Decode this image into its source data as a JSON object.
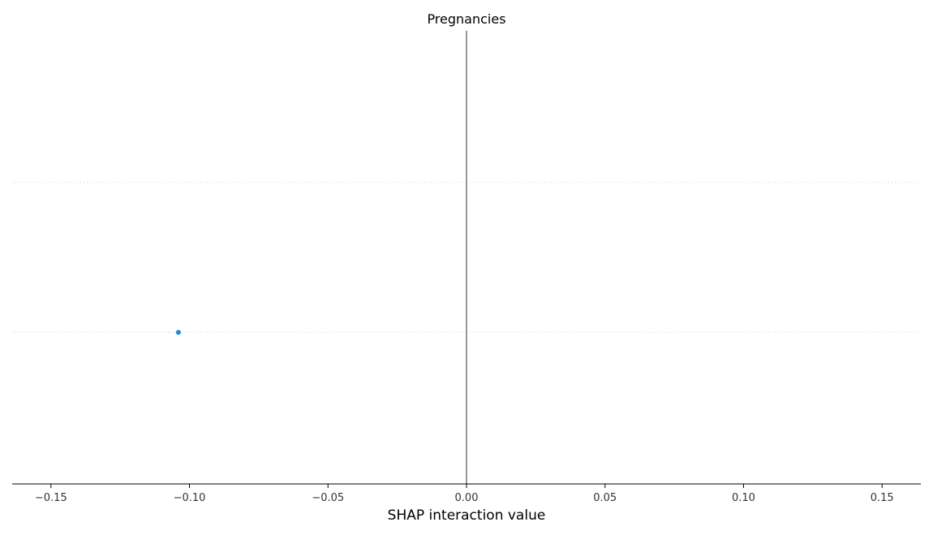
{
  "chart_data": {
    "type": "scatter",
    "title": "Pregnancies",
    "xlabel": "SHAP interaction value",
    "ylabel": "",
    "xlim": [
      -0.164,
      0.164
    ],
    "xticks": [
      -0.15,
      -0.1,
      -0.05,
      0.0,
      0.05,
      0.1,
      0.15
    ],
    "xtick_labels": [
      "−0.15",
      "−0.10",
      "−0.05",
      "0.00",
      "0.05",
      "0.10",
      "0.15"
    ],
    "rows": 2,
    "grid": false,
    "legend": "none",
    "series": [
      {
        "points": [
          {
            "x": -0.104,
            "row": 1
          }
        ]
      }
    ],
    "zero_line_color": "#999999",
    "point_color": "#1e88e5",
    "row_line_color": "#cccccc",
    "axis_color": "#000000"
  }
}
